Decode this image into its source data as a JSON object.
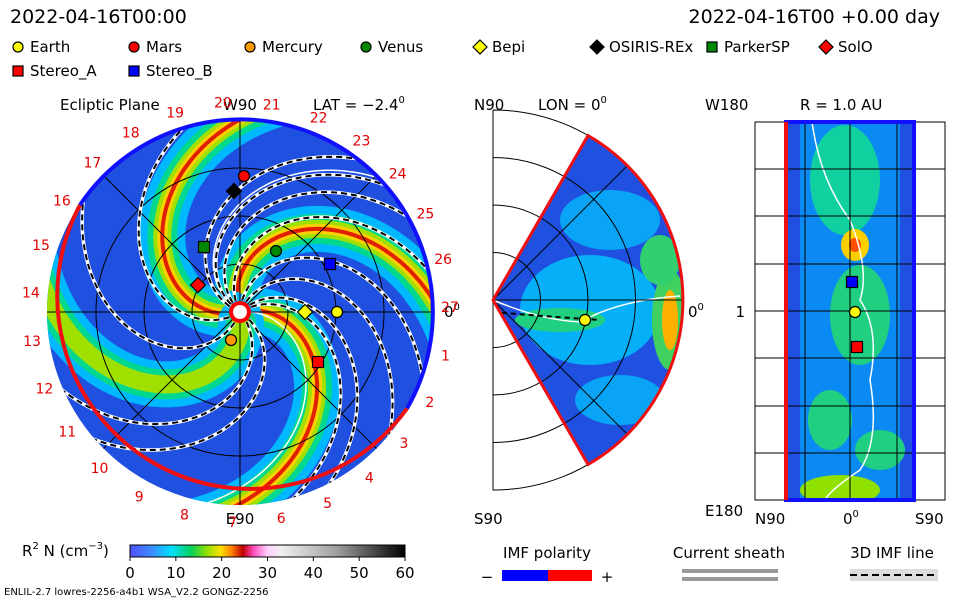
{
  "header": {
    "time": "2022-04-16T00:00",
    "elapsed": "2022-04-16T00 +0.00 day"
  },
  "legend": [
    {
      "label": "Earth",
      "color": "#ffff00",
      "shape": "circle"
    },
    {
      "label": "Mars",
      "color": "#ff0000",
      "shape": "circle"
    },
    {
      "label": "Mercury",
      "color": "#ff9900",
      "shape": "circle"
    },
    {
      "label": "Venus",
      "color": "#008800",
      "shape": "circle"
    },
    {
      "label": "Bepi",
      "color": "#ffff00",
      "shape": "diamond"
    },
    {
      "label": "OSIRIS-REx",
      "color": "#000000",
      "shape": "diamond"
    },
    {
      "label": "ParkerSP",
      "color": "#008800",
      "shape": "square"
    },
    {
      "label": "SolO",
      "color": "#ff0000",
      "shape": "diamond"
    },
    {
      "label": "Stereo_A",
      "color": "#ff0000",
      "shape": "square"
    },
    {
      "label": "Stereo_B",
      "color": "#0000ff",
      "shape": "square"
    }
  ],
  "ecliptic": {
    "title": "Ecliptic Plane",
    "top": "W90",
    "lat": "LAT = −2.4",
    "lat_sup": "0",
    "bottom": "E90",
    "right": "0",
    "right_sup": "0",
    "carrington": [
      "1",
      "2",
      "3",
      "4",
      "5",
      "6",
      "7",
      "8",
      "9",
      "10",
      "11",
      "12",
      "13",
      "14",
      "15",
      "16",
      "17",
      "18",
      "19",
      "20",
      "21",
      "22",
      "23",
      "24",
      "25",
      "26",
      "27"
    ]
  },
  "meridional": {
    "top": "N90",
    "lon": "LON = 0",
    "lon_sup": "0",
    "bottom": "S90",
    "right": "0",
    "right_sup": "0"
  },
  "radial": {
    "title": "R = 1.0 AU",
    "top": "W180",
    "bottom": "E180",
    "left_mid": "1",
    "n": "N90",
    "mid": "0",
    "mid_sup": "0",
    "s": "S90"
  },
  "colorbar": {
    "label": "R",
    "label_sup": "2",
    "label_rest": " N (cm",
    "label_sup2": "−3",
    "label_end": ")",
    "ticks": [
      0,
      10,
      20,
      30,
      40,
      50,
      60
    ]
  },
  "keys": {
    "imf": "IMF polarity",
    "minus": "−",
    "plus": "+",
    "sheath": "Current sheath",
    "line3d": "3D IMF line"
  },
  "footer": "ENLIL-2.7 lowres-2256-a4b1 WSA_V2.2 GONGZ-2256"
}
